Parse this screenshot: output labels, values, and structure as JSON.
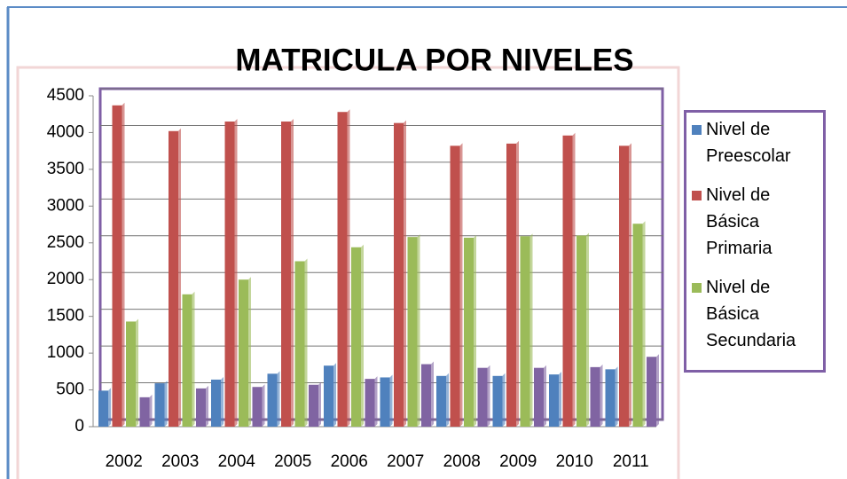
{
  "chart_data": {
    "type": "bar",
    "title": "MATRICULA POR NIVELES",
    "categories": [
      "2002",
      "2003",
      "2004",
      "2005",
      "2006",
      "2007",
      "2008",
      "2009",
      "2010",
      "2011"
    ],
    "series": [
      {
        "name": "Nivel de Preescolar",
        "color": "#4f81bd",
        "values": [
          490,
          590,
          640,
          720,
          830,
          670,
          690,
          690,
          710,
          780
        ]
      },
      {
        "name": "Nivel de Básica Primaria",
        "color": "#c0504d",
        "values": [
          4370,
          4020,
          4150,
          4150,
          4280,
          4130,
          3820,
          3850,
          3960,
          3820
        ]
      },
      {
        "name": "Nivel de Básica Secundaria",
        "color": "#9bbb59",
        "values": [
          1430,
          1800,
          2000,
          2250,
          2440,
          2580,
          2570,
          2590,
          2600,
          2760
        ]
      },
      {
        "color": "#8064a2",
        "values": [
          400,
          520,
          540,
          570,
          650,
          850,
          800,
          800,
          810,
          950
        ]
      }
    ],
    "ylim": [
      0,
      4500
    ],
    "yticks": [
      0,
      500,
      1000,
      1500,
      2000,
      2500,
      3000,
      3500,
      4000,
      4500
    ],
    "grid": true
  }
}
